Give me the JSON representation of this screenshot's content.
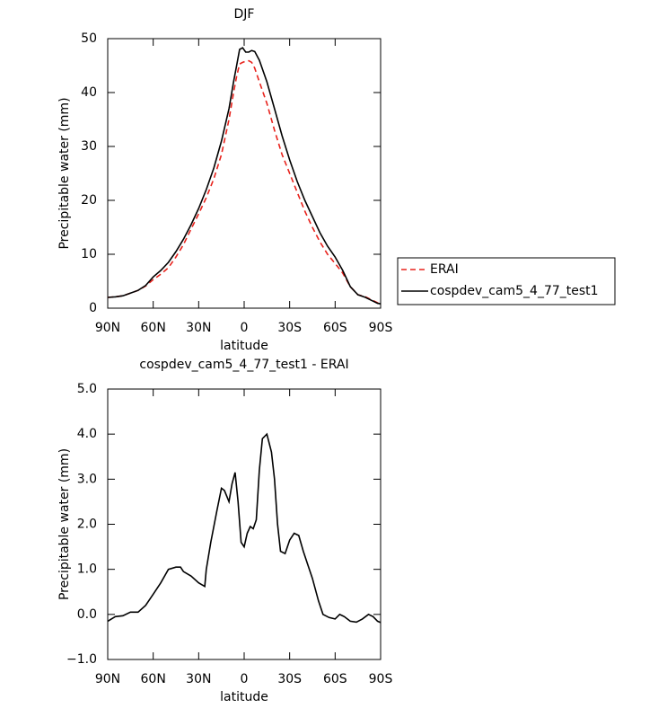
{
  "chart_data": [
    {
      "type": "line",
      "title": "DJF",
      "x_label": "latitude",
      "y_label": "Precipitable water (mm)",
      "x": [
        90,
        85,
        80,
        75,
        70,
        65,
        60,
        55,
        50,
        45,
        40,
        35,
        30,
        25,
        20,
        15,
        10,
        7,
        5,
        3,
        1,
        -1,
        -3,
        -5,
        -7,
        -10,
        -15,
        -20,
        -25,
        -30,
        -35,
        -40,
        -45,
        -50,
        -55,
        -60,
        -65,
        -70,
        -75,
        -80,
        -85,
        -88,
        -90
      ],
      "series": [
        {
          "name": "ERAI",
          "color": "#e8221c",
          "line_style": "dashed",
          "values": [
            2.0,
            2.1,
            2.3,
            2.8,
            3.3,
            4.1,
            5.3,
            6.3,
            7.5,
            9.5,
            11.8,
            14.7,
            17.5,
            20.5,
            24,
            28.5,
            35,
            40,
            43,
            45.3,
            45.6,
            45.8,
            45.9,
            45.6,
            44.5,
            42,
            38,
            33,
            28.5,
            25,
            21.5,
            18,
            15,
            12.3,
            10,
            8.3,
            6.5,
            4,
            2.5,
            2.1,
            1.4,
            1.0,
            0.9
          ]
        },
        {
          "name": "cospdev_cam5_4_77_test1",
          "color": "#000000",
          "line_style": "solid",
          "values": [
            2.0,
            2.1,
            2.3,
            2.8,
            3.3,
            4.2,
            5.8,
            7.0,
            8.5,
            10.5,
            12.8,
            15.5,
            18.5,
            22,
            26,
            31,
            37,
            42,
            45,
            48,
            48.3,
            47.5,
            47.5,
            47.8,
            47.6,
            46,
            42,
            37,
            32,
            27.5,
            23.5,
            20,
            17,
            14,
            11.5,
            9.5,
            7,
            4,
            2.5,
            2.0,
            1.3,
            0.9,
            0.8
          ]
        }
      ],
      "xlim": [
        90,
        -90
      ],
      "xticks": [
        {
          "value": 90,
          "label": "90N"
        },
        {
          "value": 60,
          "label": "60N"
        },
        {
          "value": 30,
          "label": "30N"
        },
        0,
        {
          "value": -30,
          "label": "30S"
        },
        {
          "value": -60,
          "label": "60S"
        },
        {
          "value": -90,
          "label": "90S"
        }
      ],
      "ylim": [
        0,
        50
      ],
      "yticks": [
        0,
        10,
        20,
        30,
        40,
        50
      ],
      "legend": "right"
    },
    {
      "type": "line",
      "title": "cospdev_cam5_4_77_test1 - ERAI",
      "x_label": "latitude",
      "y_label": "Precipitable water (mm)",
      "x": [
        90,
        85,
        80,
        75,
        70,
        65,
        60,
        55,
        50,
        45,
        42,
        40,
        35,
        30,
        26,
        25,
        22,
        18,
        15,
        13,
        10,
        8,
        6,
        4,
        2,
        0,
        -2,
        -4,
        -6,
        -8,
        -10,
        -12,
        -15,
        -18,
        -20,
        -22,
        -24,
        -27,
        -30,
        -33,
        -36,
        -39,
        -42,
        -45,
        -49,
        -52,
        -56,
        -60,
        -63,
        -66,
        -70,
        -74,
        -78,
        -82,
        -85,
        -88,
        -90
      ],
      "series": [
        {
          "name": "cospdev_cam5_4_77_test1 - ERAI",
          "color": "#000000",
          "line_style": "solid",
          "values": [
            -0.15,
            -0.05,
            -0.03,
            0.05,
            0.05,
            0.2,
            0.45,
            0.7,
            1.0,
            1.05,
            1.05,
            0.95,
            0.85,
            0.7,
            0.62,
            1.0,
            1.6,
            2.3,
            2.8,
            2.75,
            2.5,
            2.9,
            3.15,
            2.5,
            1.6,
            1.5,
            1.8,
            1.95,
            1.9,
            2.1,
            3.2,
            3.9,
            4.0,
            3.6,
            3.0,
            2.0,
            1.4,
            1.35,
            1.65,
            1.8,
            1.75,
            1.4,
            1.1,
            0.8,
            0.3,
            0.0,
            -0.07,
            -0.1,
            0.0,
            -0.05,
            -0.15,
            -0.17,
            -0.1,
            0.0,
            -0.05,
            -0.15,
            -0.18
          ]
        }
      ],
      "xlim": [
        90,
        -90
      ],
      "xticks": [
        {
          "value": 90,
          "label": "90N"
        },
        {
          "value": 60,
          "label": "60N"
        },
        {
          "value": 30,
          "label": "30N"
        },
        0,
        {
          "value": -30,
          "label": "30S"
        },
        {
          "value": -60,
          "label": "60S"
        },
        {
          "value": -90,
          "label": "90S"
        }
      ],
      "ylim": [
        -1,
        5
      ],
      "yticks": [
        {
          "value": -1,
          "label": "−1.0"
        },
        {
          "value": 0,
          "label": "0.0"
        },
        {
          "value": 1,
          "label": "1.0"
        },
        {
          "value": 2,
          "label": "2.0"
        },
        {
          "value": 3,
          "label": "3.0"
        },
        {
          "value": 4,
          "label": "4.0"
        },
        {
          "value": 5,
          "label": "5.0"
        }
      ]
    }
  ]
}
